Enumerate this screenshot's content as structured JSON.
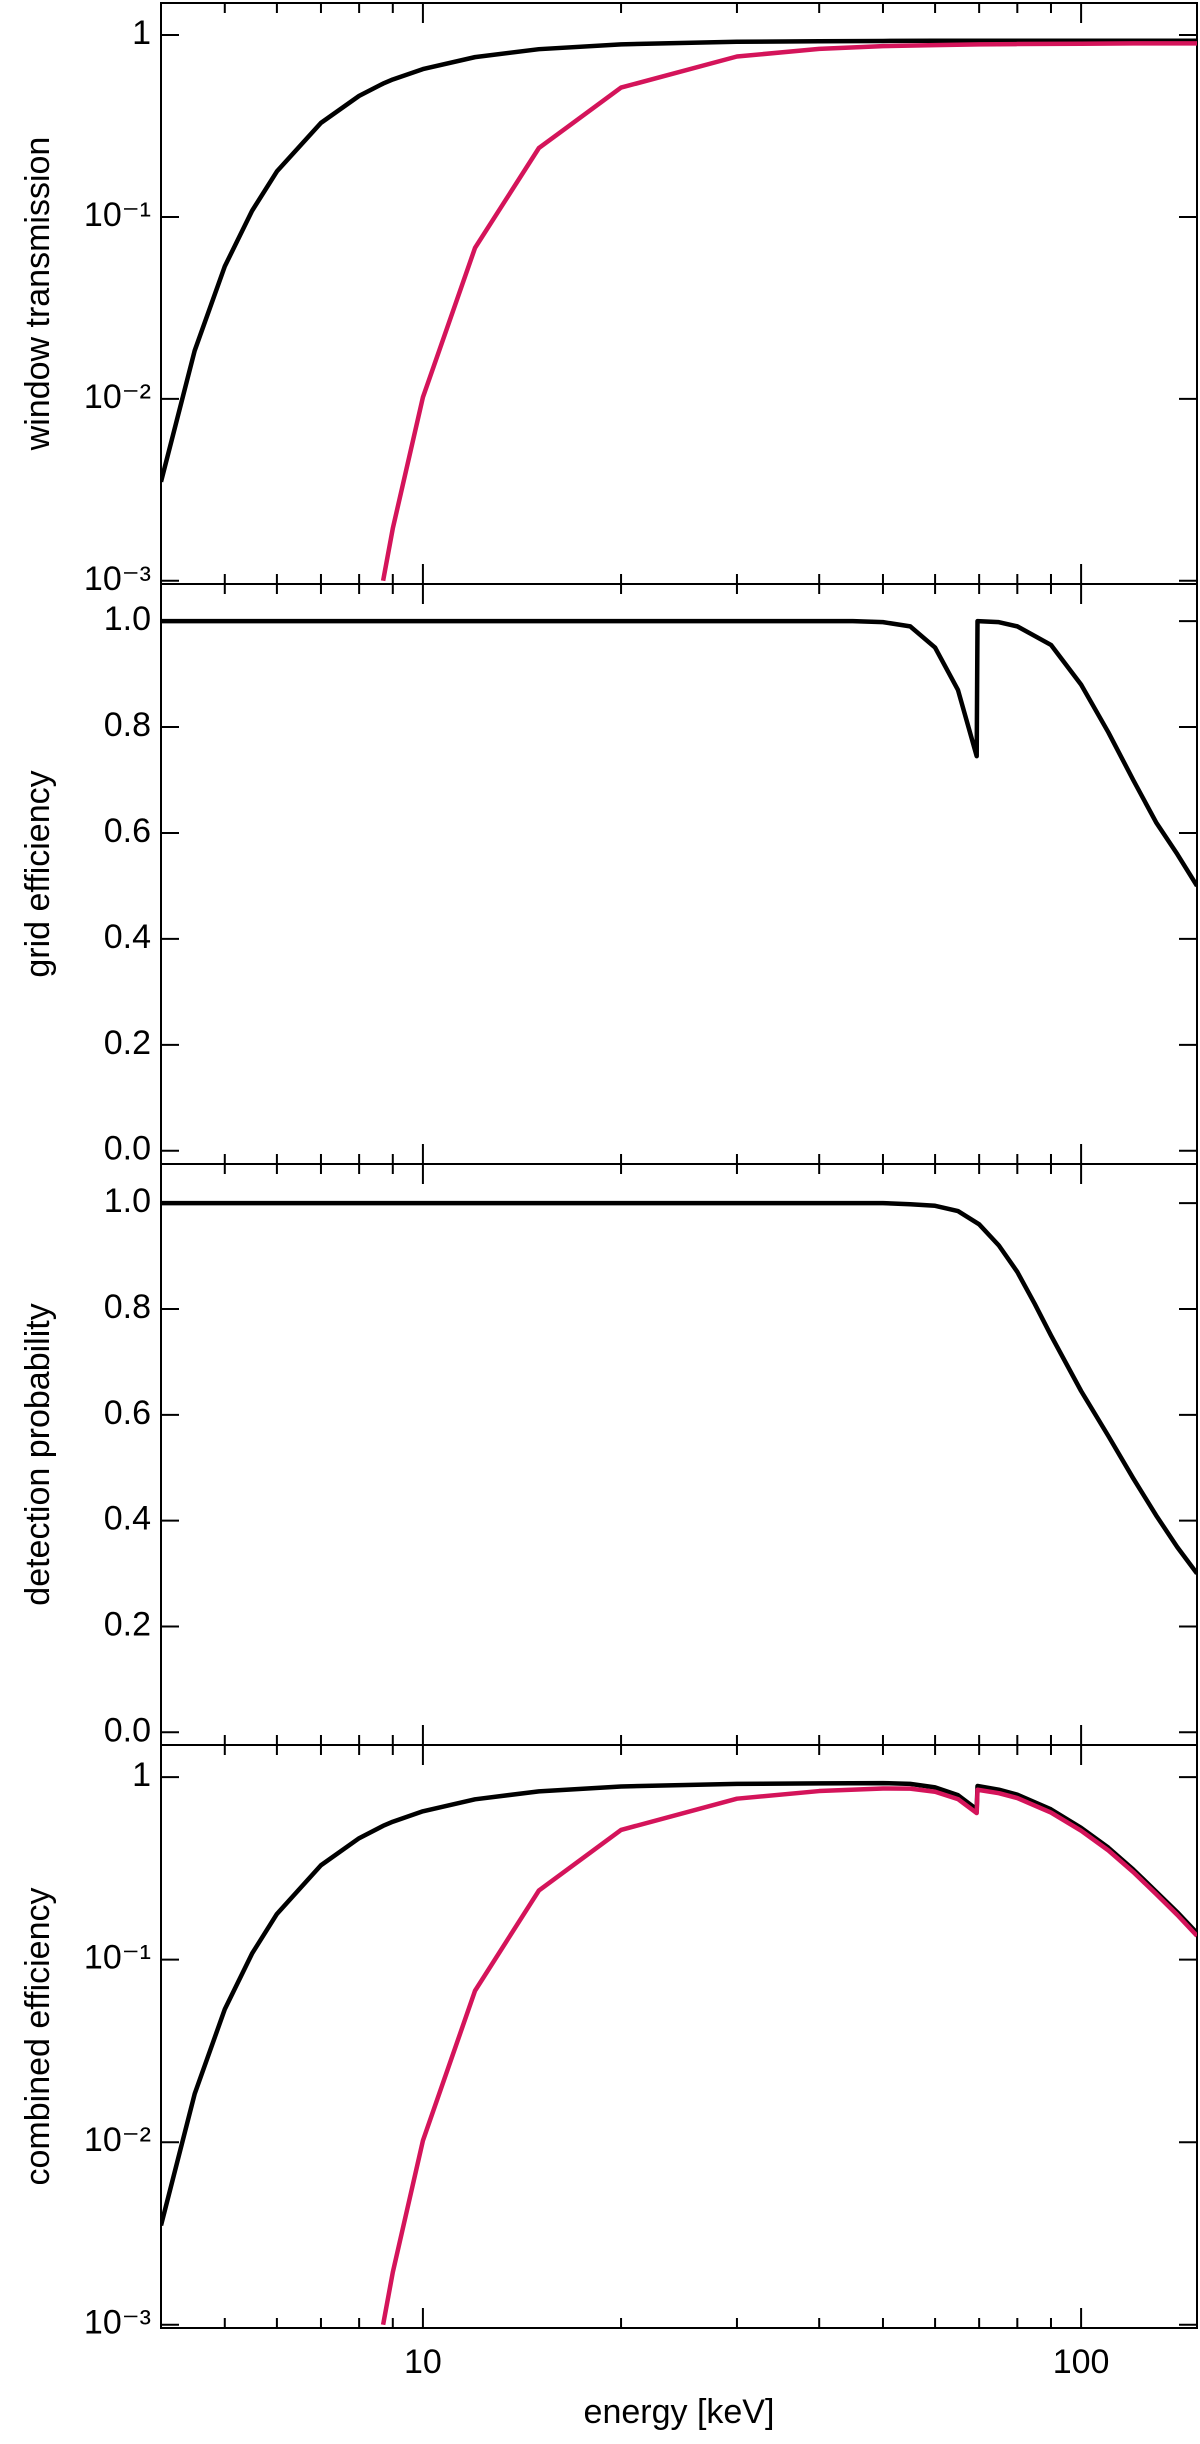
{
  "chart_data": [
    {
      "type": "line",
      "ylabel": "window transmission",
      "xscale": "log",
      "yscale": "log",
      "xlim": [
        4,
        150
      ],
      "xticks": [
        10,
        100
      ],
      "xminorticks": [
        5,
        6,
        7,
        8,
        9,
        20,
        30,
        40,
        50,
        60,
        70,
        80,
        90
      ],
      "ylim": [
        0.00096,
        1.5
      ],
      "yticks": [
        1,
        {
          "value": 0.1,
          "label": "10⁻¹"
        },
        {
          "value": 0.01,
          "label": "10⁻²"
        },
        {
          "value": 0.001,
          "label": "10⁻³"
        }
      ],
      "x": [
        4,
        4.5,
        5,
        5.5,
        6,
        7,
        8,
        8.7,
        9,
        10,
        12,
        15,
        20,
        30,
        40,
        50,
        60,
        70,
        80,
        100,
        120,
        150
      ],
      "series": [
        {
          "color": "#000000",
          "values": [
            0.0035,
            0.0184,
            0.0535,
            0.108,
            0.178,
            0.329,
            0.463,
            0.541,
            0.57,
            0.65,
            0.756,
            0.836,
            0.889,
            0.918,
            0.925,
            0.928,
            0.93,
            0.93,
            0.93,
            0.93,
            0.93,
            0.93
          ]
        },
        {
          "color": "#d4145a",
          "values": [
            null,
            null,
            null,
            null,
            null,
            null,
            null,
            0.001,
            0.00194,
            0.0102,
            0.0676,
            0.239,
            0.514,
            0.762,
            0.839,
            0.869,
            0.88,
            0.888,
            0.892,
            0.896,
            0.9,
            0.9
          ]
        }
      ]
    },
    {
      "type": "line",
      "ylabel": "grid efficiency",
      "xscale": "log",
      "yscale": "linear",
      "xlim": [
        4,
        150
      ],
      "xticks": [
        10,
        100
      ],
      "xminorticks": [
        5,
        6,
        7,
        8,
        9,
        20,
        30,
        40,
        50,
        60,
        70,
        80,
        90
      ],
      "ylim": [
        -0.025,
        1.07
      ],
      "yticks": [
        {
          "value": 0,
          "label": "0.0"
        },
        0.2,
        0.4,
        0.6,
        0.8,
        {
          "value": 1,
          "label": "1.0"
        }
      ],
      "x": [
        4,
        10,
        30,
        45,
        50,
        55,
        60,
        65,
        69.4,
        69.6,
        75,
        80,
        90,
        100,
        110,
        120,
        130,
        140,
        150
      ],
      "series": [
        {
          "color": "#000000",
          "values": [
            1,
            1,
            1,
            1,
            0.998,
            0.99,
            0.95,
            0.87,
            0.745,
            1.0,
            0.998,
            0.99,
            0.955,
            0.88,
            0.79,
            0.7,
            0.62,
            0.56,
            0.5
          ]
        }
      ]
    },
    {
      "type": "line",
      "ylabel": "detection probability",
      "xscale": "log",
      "yscale": "linear",
      "xlim": [
        4,
        150
      ],
      "xticks": [
        10,
        100
      ],
      "xminorticks": [
        5,
        6,
        7,
        8,
        9,
        20,
        30,
        40,
        50,
        60,
        70,
        80,
        90
      ],
      "ylim": [
        -0.024,
        1.074
      ],
      "yticks": [
        {
          "value": 0,
          "label": "0.0"
        },
        0.2,
        0.4,
        0.6,
        0.8,
        {
          "value": 1,
          "label": "1.0"
        }
      ],
      "x": [
        4,
        20,
        40,
        50,
        55,
        60,
        65,
        70,
        75,
        80,
        85,
        90,
        100,
        110,
        120,
        130,
        140,
        150
      ],
      "series": [
        {
          "color": "#000000",
          "values": [
            1,
            1,
            1,
            1,
            0.998,
            0.995,
            0.985,
            0.96,
            0.92,
            0.87,
            0.81,
            0.75,
            0.645,
            0.56,
            0.48,
            0.41,
            0.35,
            0.3
          ]
        }
      ]
    },
    {
      "type": "line",
      "ylabel": "combined efficiency",
      "xlabel": "energy [keV]",
      "xscale": "log",
      "yscale": "log",
      "xlim": [
        4,
        150
      ],
      "xticks": [
        10,
        100
      ],
      "xminorticks": [
        5,
        6,
        7,
        8,
        9,
        20,
        30,
        40,
        50,
        60,
        70,
        80,
        90
      ],
      "ylim": [
        0.00096,
        1.5
      ],
      "yticks": [
        1,
        {
          "value": 0.1,
          "label": "10⁻¹"
        },
        {
          "value": 0.01,
          "label": "10⁻²"
        },
        {
          "value": 0.001,
          "label": "10⁻³"
        }
      ],
      "x": [
        4,
        4.5,
        5,
        5.5,
        6,
        7,
        8,
        8.7,
        9,
        10,
        12,
        15,
        20,
        30,
        40,
        50,
        55,
        60,
        65,
        69.4,
        69.6,
        75,
        80,
        90,
        100,
        110,
        120,
        130,
        140,
        150
      ],
      "series": [
        {
          "color": "#000000",
          "values": [
            0.0035,
            0.0184,
            0.0535,
            0.108,
            0.178,
            0.329,
            0.463,
            0.541,
            0.57,
            0.65,
            0.756,
            0.836,
            0.889,
            0.918,
            0.925,
            0.928,
            0.919,
            0.879,
            0.797,
            0.667,
            0.894,
            0.854,
            0.801,
            0.666,
            0.528,
            0.411,
            0.312,
            0.236,
            0.182,
            0.14
          ]
        },
        {
          "color": "#d4145a",
          "values": [
            null,
            null,
            null,
            null,
            null,
            null,
            null,
            0.001,
            0.00194,
            0.0102,
            0.0676,
            0.239,
            0.514,
            0.762,
            0.839,
            0.867,
            0.865,
            0.832,
            0.758,
            0.636,
            0.853,
            0.817,
            0.768,
            0.64,
            0.509,
            0.397,
            0.302,
            0.229,
            0.176,
            0.135
          ]
        }
      ]
    }
  ]
}
